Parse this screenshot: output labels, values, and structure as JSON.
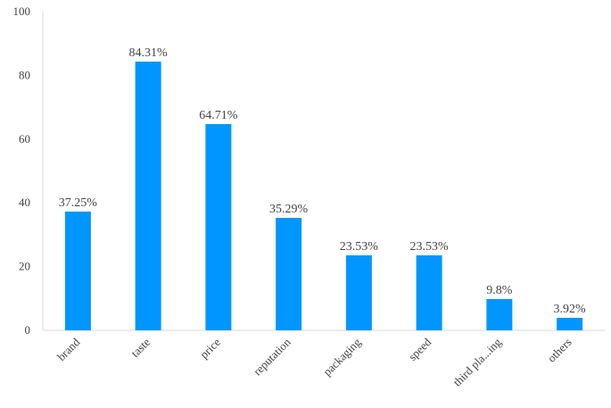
{
  "chart_data": {
    "type": "bar",
    "title": "",
    "xlabel": "",
    "ylabel": "",
    "ylim": [
      0,
      100
    ],
    "yticks": [
      0,
      20,
      40,
      60,
      80,
      100
    ],
    "grid": false,
    "bar_color": "#0096ff",
    "categories": [
      "brand",
      "taste",
      "price",
      "reputation",
      "packaging",
      "speed",
      "third pla...ing",
      "others"
    ],
    "values": [
      37.25,
      84.31,
      64.71,
      35.29,
      23.53,
      23.53,
      9.8,
      3.92
    ],
    "data_labels": [
      "37.25%",
      "84.31%",
      "64.71%",
      "35.29%",
      "23.53%",
      "23.53%",
      "9.8%",
      "3.92%"
    ]
  }
}
